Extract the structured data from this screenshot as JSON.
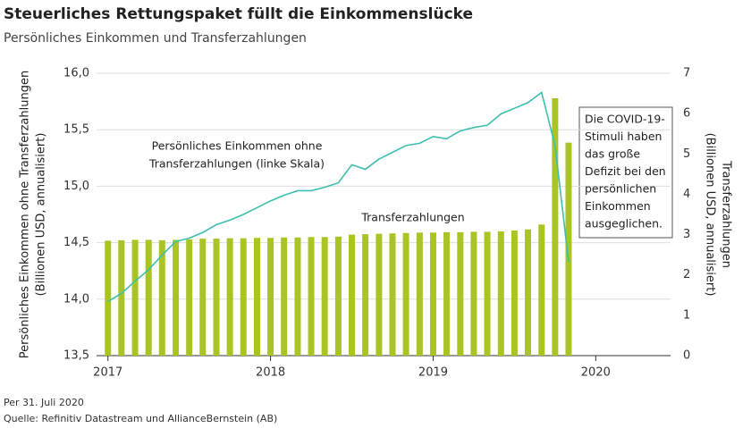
{
  "chart_data": {
    "type": "combo",
    "title": "Steuerliches Rettungspaket füllt die Einkommenslücke",
    "subtitle": "Persönliches Einkommen und Transferzahlungen",
    "y_label": [
      "Persönliches Einkommen ohne Transferzahlungen",
      "(Billionen USD, annualisiert)"
    ],
    "y2_label": [
      "Transferzahlungen",
      "(Billionen USD, annualisiert)"
    ],
    "annotations": {
      "line_label": [
        "Persönliches Einkommen ohne",
        "Transferzahlungen (linke Skala)"
      ],
      "bar_label": "Transferzahlungen",
      "box": [
        "Die COVID-19-",
        "Stimuli haben",
        "das große",
        "Defizit bei den",
        "persönlichen",
        "Einkommen",
        "ausgeglichen."
      ]
    },
    "footnotes": [
      "Per 31. Juli 2020",
      "Quelle: Refinitiv Datastream und AllianceBernstein (AB)"
    ],
    "x": [
      2017,
      2017.083,
      2017.167,
      2017.25,
      2017.333,
      2017.417,
      2017.5,
      2017.583,
      2017.667,
      2017.75,
      2017.833,
      2017.917,
      2018,
      2018.083,
      2018.167,
      2018.25,
      2018.333,
      2018.417,
      2018.5,
      2018.583,
      2018.667,
      2018.75,
      2018.833,
      2018.917,
      2019,
      2019.083,
      2019.167,
      2019.25,
      2019.333,
      2019.417,
      2019.5,
      2019.583,
      2019.667,
      2019.75,
      2019.833
    ],
    "xlim": [
      2016.93,
      2020.46
    ],
    "xticks": [
      2017,
      2018,
      2019,
      2020
    ],
    "ylim": [
      13.5,
      16
    ],
    "yticks": [
      {
        "value": 13.5,
        "label": "13,5"
      },
      {
        "value": 14,
        "label": "14,0"
      },
      {
        "value": 14.5,
        "label": "14,5"
      },
      {
        "value": 15,
        "label": "15,0"
      },
      {
        "value": 15.5,
        "label": "15,5"
      },
      {
        "value": 16,
        "label": "16,0"
      }
    ],
    "y2lim": [
      0,
      7
    ],
    "y2ticks": [
      0,
      1,
      2,
      3,
      4,
      5,
      6,
      7
    ],
    "grid": true,
    "series": [
      {
        "name": "Transferzahlungen",
        "type": "bar",
        "axis": "y2",
        "color": "#a9c523",
        "values": [
          2.85,
          2.86,
          2.87,
          2.87,
          2.86,
          2.87,
          2.88,
          2.9,
          2.9,
          2.91,
          2.91,
          2.92,
          2.92,
          2.93,
          2.93,
          2.94,
          2.94,
          2.95,
          3.0,
          3.01,
          3.02,
          3.03,
          3.04,
          3.05,
          3.05,
          3.06,
          3.06,
          3.07,
          3.07,
          3.08,
          3.1,
          3.13,
          3.25,
          6.38,
          5.28
        ]
      },
      {
        "name": "Persönliches Einkommen ohne Transferzahlungen",
        "type": "line",
        "axis": "y",
        "color": "#3dbfb0",
        "values": [
          13.98,
          14.05,
          14.16,
          14.26,
          14.39,
          14.51,
          14.54,
          14.59,
          14.66,
          14.7,
          14.75,
          14.81,
          14.87,
          14.92,
          14.96,
          14.96,
          14.99,
          15.03,
          15.19,
          15.15,
          15.24,
          15.3,
          15.36,
          15.38,
          15.44,
          15.42,
          15.49,
          15.52,
          15.54,
          15.64,
          15.69,
          15.74,
          15.83,
          15.36,
          14.33
        ]
      }
    ]
  }
}
